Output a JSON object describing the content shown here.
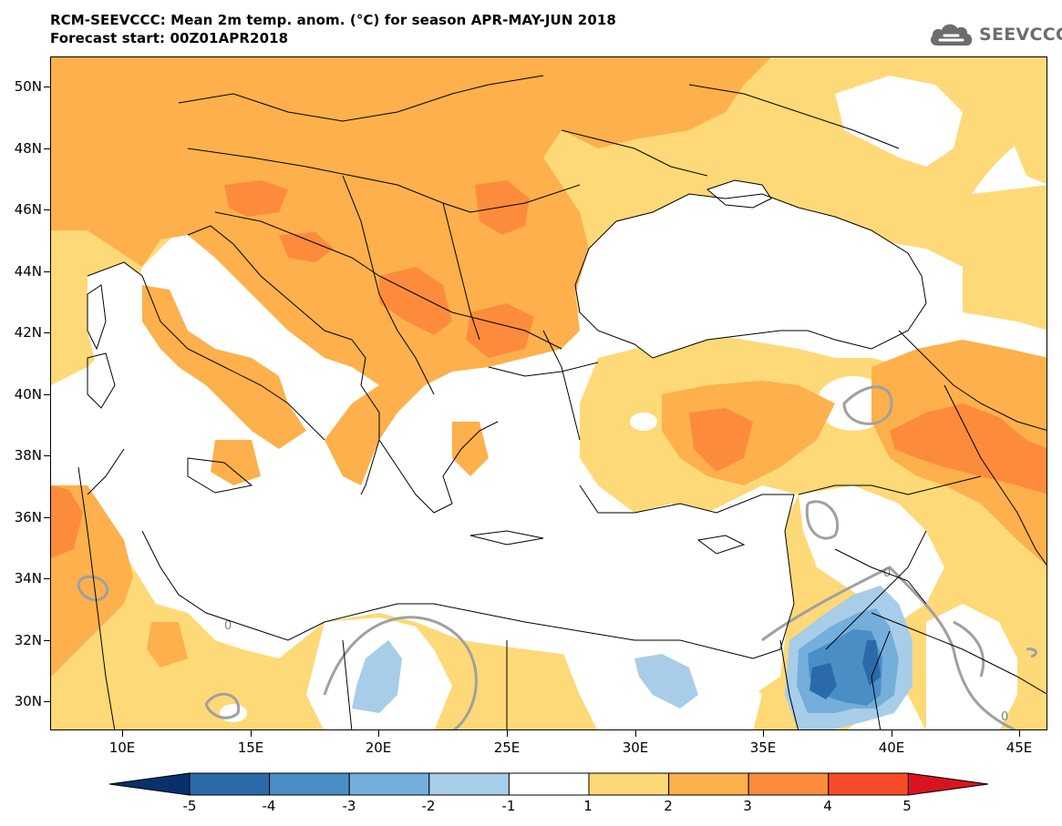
{
  "title": {
    "line1": "RCM-SEEVCCC: Mean 2m temp. anom. (°C) for season APR-MAY-JUN 2018",
    "line2": "Forecast start: 00Z01APR2018"
  },
  "logo": {
    "text": "SEEVCCC",
    "icon": "cloud-icon"
  },
  "axes": {
    "lat_labels": [
      "50N",
      "48N",
      "46N",
      "44N",
      "42N",
      "40N",
      "38N",
      "36N",
      "34N",
      "32N",
      "30N"
    ],
    "lon_labels": [
      "10E",
      "15E",
      "20E",
      "25E",
      "30E",
      "35E",
      "40E",
      "45E"
    ],
    "lon_range": [
      7,
      46
    ],
    "lat_range": [
      29,
      51
    ]
  },
  "contour_label": "0",
  "colorbar": {
    "labels": [
      "-5",
      "-4",
      "-3",
      "-2",
      "-1",
      "1",
      "2",
      "3",
      "4",
      "5"
    ],
    "colors": [
      "#08306b",
      "#2b6aa8",
      "#4a8ec6",
      "#74aedb",
      "#a8cde8",
      "#ffffff",
      "#fed977",
      "#fdb04c",
      "#fc8c3c",
      "#f84b2a",
      "#d9141f"
    ]
  },
  "colors": {
    "anom_1_2": "#fed977",
    "anom_2_3": "#fdb04c",
    "anom_3_4": "#fc8c3c",
    "anom_m1_m2": "#a8cde8",
    "anom_m2_m3": "#74aedb",
    "anom_m3_m4": "#4a8ec6",
    "anom_m4_m5": "#2b6aa8",
    "zero_contour": "#a0a0a0"
  }
}
